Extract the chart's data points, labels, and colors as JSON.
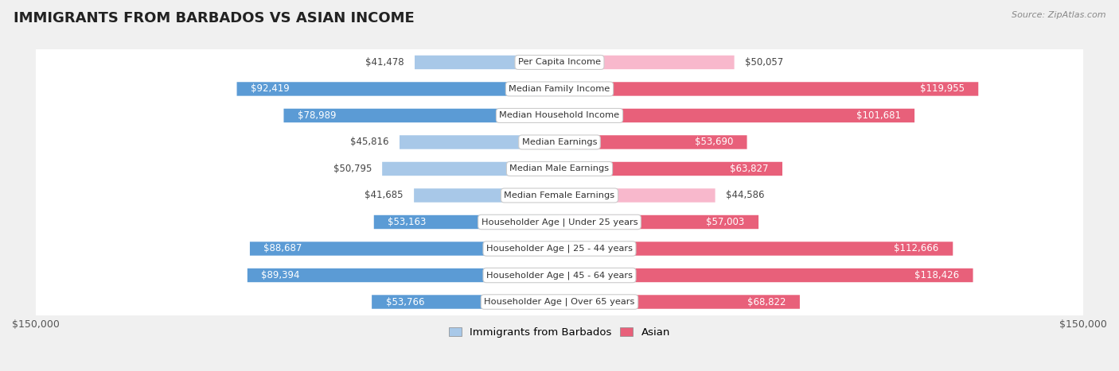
{
  "title": "IMMIGRANTS FROM BARBADOS VS ASIAN INCOME",
  "source": "Source: ZipAtlas.com",
  "categories": [
    "Per Capita Income",
    "Median Family Income",
    "Median Household Income",
    "Median Earnings",
    "Median Male Earnings",
    "Median Female Earnings",
    "Householder Age | Under 25 years",
    "Householder Age | 25 - 44 years",
    "Householder Age | 45 - 64 years",
    "Householder Age | Over 65 years"
  ],
  "barbados_values": [
    41478,
    92419,
    78989,
    45816,
    50795,
    41685,
    53163,
    88687,
    89394,
    53766
  ],
  "asian_values": [
    50057,
    119955,
    101681,
    53690,
    63827,
    44586,
    57003,
    112666,
    118426,
    68822
  ],
  "barbados_color_light": "#a8c8e8",
  "barbados_color_dark": "#5b9bd5",
  "asian_color_light": "#f8b8cc",
  "asian_color_dark": "#e8607a",
  "max_val": 150000,
  "bg_color": "#f0f0f0",
  "row_bg": "#ffffff",
  "label_fontsize": 8.5,
  "title_fontsize": 13,
  "legend_label_barbados": "Immigrants from Barbados",
  "legend_label_asian": "Asian",
  "inside_threshold": 52500
}
